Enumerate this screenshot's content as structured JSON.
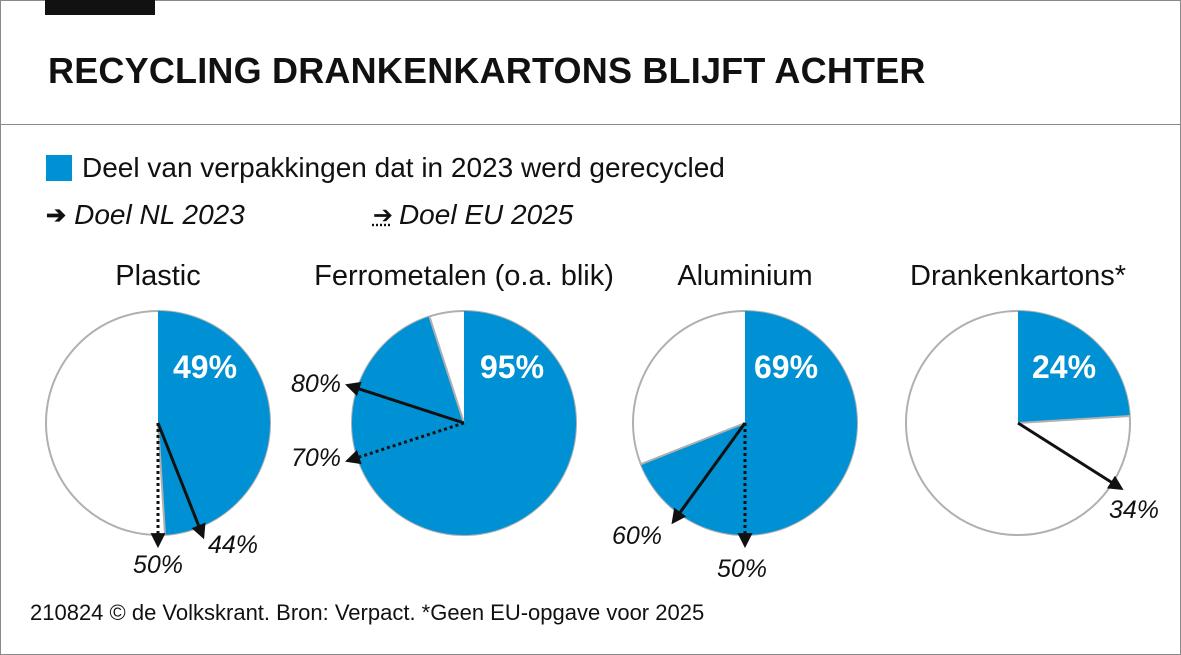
{
  "title": "RECYCLING DRANKENKARTONS BLIJFT ACHTER",
  "legend": {
    "recycled_label": "Deel van verpakkingen dat in 2023 werd gerecycled",
    "target_nl_label": "Doel NL 2023",
    "target_eu_label": "Doel EU 2025",
    "target_nl_glyph": "➔",
    "target_eu_glyph": "➔"
  },
  "source": "210824 © de Volkskrant. Bron: Verpact. *Geen EU-opgave voor 2025",
  "colors": {
    "recycled": "#0090d4",
    "remainder": "#ffffff",
    "outline": "#b0b0b0",
    "arrow": "#111111"
  },
  "chart_data": {
    "type": "pie",
    "unit": "%",
    "charts": [
      {
        "category": "Plastic",
        "recycled": 49,
        "recycled_label": "49%",
        "target_nl": 44,
        "target_nl_label": "44%",
        "target_eu": 50,
        "target_eu_label": "50%"
      },
      {
        "category": "Ferrometalen (o.a. blik)",
        "recycled": 95,
        "recycled_label": "95%",
        "target_nl": 80,
        "target_nl_label": "80%",
        "target_eu": 70,
        "target_eu_label": "70%"
      },
      {
        "category": "Aluminium",
        "recycled": 69,
        "recycled_label": "69%",
        "target_nl": 60,
        "target_nl_label": "60%",
        "target_eu": 50,
        "target_eu_label": "50%"
      },
      {
        "category": "Drankenkartons*",
        "recycled": 24,
        "recycled_label": "24%",
        "target_nl": 34,
        "target_nl_label": "34%",
        "target_eu": null,
        "target_eu_label": null
      }
    ]
  }
}
